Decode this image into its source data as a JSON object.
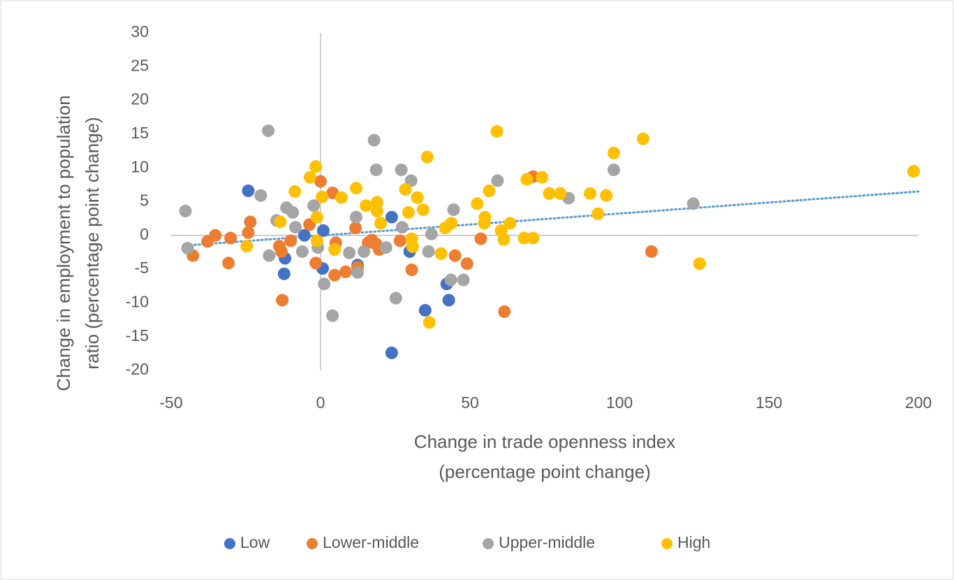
{
  "chart_data": {
    "type": "scatter",
    "x_label": [
      "Change in trade openness index",
      "(percentage point change)"
    ],
    "y_label": [
      "Change in employment to population",
      "ratio (percentage point change)"
    ],
    "xlim": [
      -50,
      200
    ],
    "xticks": [
      -50,
      0,
      50,
      100,
      150,
      200
    ],
    "ylim": [
      -20,
      30
    ],
    "yticks": [
      -20,
      -15,
      -10,
      -5,
      0,
      5,
      10,
      15,
      20,
      25,
      30
    ],
    "grid": false,
    "legend": "bottom",
    "trendline": {
      "color": "#5b9bd5",
      "x": [
        -45,
        200
      ],
      "y": [
        -1.5,
        6.5
      ]
    },
    "series": [
      {
        "name": "Low",
        "color": "#4472c4",
        "x": [
          -24.2,
          -11.9,
          -12.2,
          -5.4,
          0.9,
          0.7,
          12.4,
          23.8,
          29.8,
          35,
          42.2,
          42.9,
          23.8
        ],
        "y": [
          6.6,
          -3.4,
          -5.7,
          0,
          0.7,
          -4.9,
          -4.4,
          2.7,
          -2.4,
          -11.1,
          -7.2,
          -9.6,
          -17.4
        ]
      },
      {
        "name": "Lower-middle",
        "color": "#ed7d31",
        "x": [
          -42.7,
          -37.8,
          -35.2,
          -30.1,
          -30.8,
          -24.2,
          -23.5,
          -13.8,
          -13.1,
          -12.8,
          -10,
          -3.7,
          -1.6,
          0,
          4,
          4.7,
          5.1,
          8.4,
          12.4,
          11.7,
          15.9,
          17.2,
          18.6,
          19.6,
          26.6,
          30.5,
          45,
          49,
          53.6,
          61.5,
          71.1,
          110.7
        ],
        "y": [
          -3,
          -0.9,
          0,
          -0.4,
          -4.1,
          0.4,
          2,
          -1.6,
          -2.4,
          -9.6,
          -0.8,
          1.6,
          -4.1,
          8,
          6.3,
          -5.9,
          -1.1,
          -5.4,
          -4.7,
          1.1,
          -1.1,
          -0.7,
          -1.3,
          -2.1,
          -0.8,
          -5.1,
          -3,
          -4.2,
          -0.5,
          -11.3,
          8.7,
          -2.4
        ]
      },
      {
        "name": "Upper-middle",
        "color": "#a5a5a5",
        "x": [
          -45.2,
          -44.5,
          -17.5,
          -20,
          -17.2,
          -14.7,
          -11.4,
          -9.3,
          -8.4,
          -6.1,
          -2.3,
          -0.9,
          1.2,
          4,
          9.6,
          11.9,
          12.4,
          17.9,
          18.6,
          14.5,
          21.9,
          25.2,
          27,
          27.3,
          30.3,
          36.1,
          37.1,
          44.5,
          43.6,
          47.8,
          59.2,
          83,
          98.1,
          124.7
        ],
        "y": [
          3.6,
          -1.9,
          15.5,
          5.9,
          -3,
          2.2,
          4.1,
          3.4,
          1.2,
          -2.4,
          4.4,
          -1.8,
          -7.2,
          -11.9,
          -2.6,
          2.7,
          -5.5,
          14.1,
          9.7,
          -2.4,
          -1.8,
          -9.3,
          9.7,
          1.2,
          8.1,
          -2.4,
          0.2,
          3.8,
          -6.6,
          -6.6,
          8.1,
          5.5,
          9.7,
          4.7
        ]
      },
      {
        "name": "High",
        "color": "#ffc000",
        "x": [
          -24.7,
          -13.5,
          -8.6,
          -3.5,
          -1.6,
          -1.2,
          -1.2,
          0.5,
          4.7,
          7,
          11.9,
          15.2,
          18.9,
          18.9,
          20.1,
          28.4,
          29.4,
          30.5,
          30.8,
          32.4,
          34.3,
          35.7,
          36.4,
          40.3,
          41.7,
          43.8,
          52.4,
          55,
          54.8,
          56.4,
          59,
          60.4,
          61.3,
          63.4,
          68.1,
          69,
          71.1,
          74.1,
          76.5,
          80.2,
          90.2,
          92.8,
          95.6,
          98.1,
          107.9,
          126.8,
          198.4
        ],
        "y": [
          -1.6,
          2,
          6.5,
          8.6,
          10.2,
          -0.8,
          2.7,
          5.7,
          -2.1,
          5.6,
          7,
          4.4,
          4.9,
          3.6,
          1.8,
          6.8,
          3.4,
          -0.5,
          -1.7,
          5.6,
          3.8,
          11.6,
          -12.9,
          -2.7,
          1.1,
          1.8,
          4.7,
          2.7,
          1.8,
          6.6,
          15.4,
          0.7,
          -0.6,
          1.8,
          -0.4,
          8.3,
          -0.4,
          8.6,
          6.2,
          6.2,
          6.2,
          3.2,
          5.9,
          12.2,
          14.3,
          -4.2,
          9.5
        ]
      }
    ]
  }
}
